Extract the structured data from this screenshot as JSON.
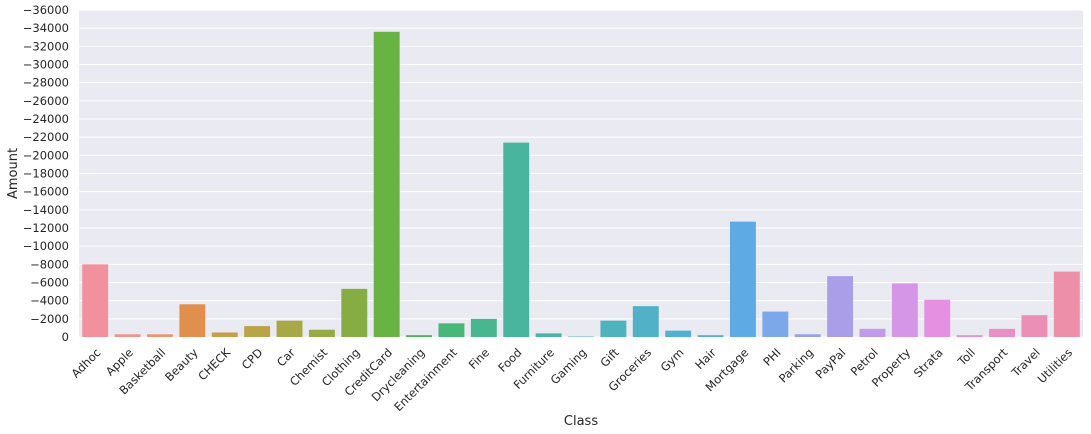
{
  "chart_data": {
    "type": "bar",
    "title": "",
    "xlabel": "Class",
    "ylabel": "Amount",
    "ylim": [
      0,
      -36000
    ],
    "y_ticks": [
      0,
      -2000,
      -4000,
      -6000,
      -8000,
      -10000,
      -12000,
      -14000,
      -16000,
      -18000,
      -20000,
      -22000,
      -24000,
      -26000,
      -28000,
      -30000,
      -32000,
      -34000,
      -36000
    ],
    "y_tick_labels": [
      "0",
      "−2000",
      "−4000",
      "−6000",
      "−8000",
      "−10000",
      "−12000",
      "−14000",
      "−16000",
      "−18000",
      "−20000",
      "−22000",
      "−24000",
      "−26000",
      "−28000",
      "−30000",
      "−32000",
      "−34000",
      "−36000"
    ],
    "grid": true,
    "categories": [
      "Adhoc",
      "Apple",
      "Basketball",
      "Beauty",
      "CHECK",
      "CPD",
      "Car",
      "Chemist",
      "Clothing",
      "CreditCard",
      "Drycleaning",
      "Entertainment",
      "Fine",
      "Food",
      "Furniture",
      "Gaming",
      "Gift",
      "Groceries",
      "Gym",
      "Hair",
      "Mortgage",
      "PHI",
      "Parking",
      "PayPal",
      "Petrol",
      "Property",
      "Strata",
      "Toll",
      "Transport",
      "Travel",
      "Utilities"
    ],
    "values": [
      -8000,
      -300,
      -300,
      -3600,
      -500,
      -1200,
      -1800,
      -800,
      -5300,
      -33600,
      -200,
      -1500,
      -2000,
      -21400,
      -400,
      -50,
      -1800,
      -3400,
      -700,
      -200,
      -12700,
      -2800,
      -300,
      -6700,
      -900,
      -5900,
      -4100,
      -200,
      -900,
      -2400,
      -7200
    ],
    "colors": [
      "#f2919d",
      "#f29389",
      "#ec9571",
      "#e08f4c",
      "#c99f4a",
      "#b9a448",
      "#a9a846",
      "#97ab45",
      "#86ad43",
      "#69b244",
      "#48b655",
      "#48b77a",
      "#4ab68f",
      "#4ab59e",
      "#4bb4aa",
      "#4cb3b3",
      "#4eb3bd",
      "#50b1c7",
      "#52b0d2",
      "#55aee1",
      "#5daae5",
      "#7ca7e8",
      "#95a2e8",
      "#ab9ee8",
      "#c19ae8",
      "#d696e8",
      "#e690e2",
      "#e88fd3",
      "#ea8fc5",
      "#ec8fb7",
      "#ee8faa"
    ]
  }
}
